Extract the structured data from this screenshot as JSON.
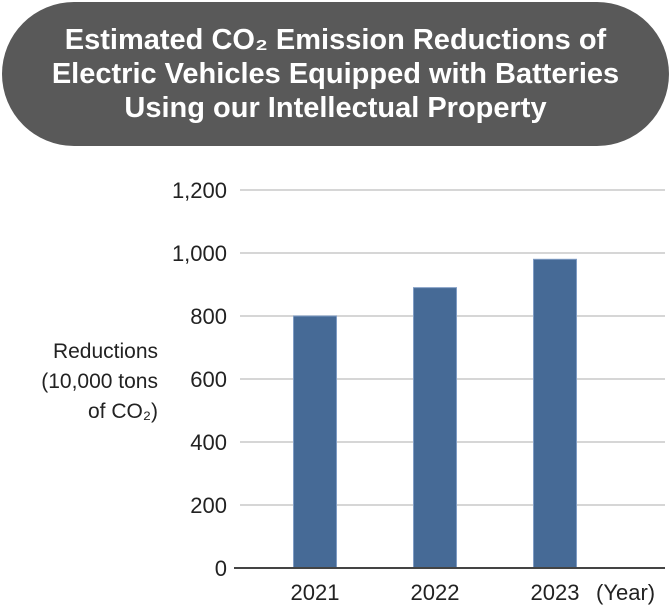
{
  "chart_data": {
    "type": "bar",
    "title": "Estimated CO₂ Emission Reductions of\nElectric Vehicles Equipped with Batteries\nUsing our Intellectual Property",
    "categories": [
      "2021",
      "2022",
      "2023"
    ],
    "values": [
      800,
      890,
      980
    ],
    "xlabel": "(Year)",
    "ylabel": "Reductions\n(10,000 tons\nof CO₂)",
    "ylim": [
      0,
      1200
    ],
    "yticks": [
      "0",
      "200",
      "400",
      "600",
      "800",
      "1,000",
      "1,200"
    ],
    "grid": true,
    "colors": {
      "bar": "#466a96",
      "title_bg": "#595959",
      "grid": "#c8c8c8"
    }
  }
}
